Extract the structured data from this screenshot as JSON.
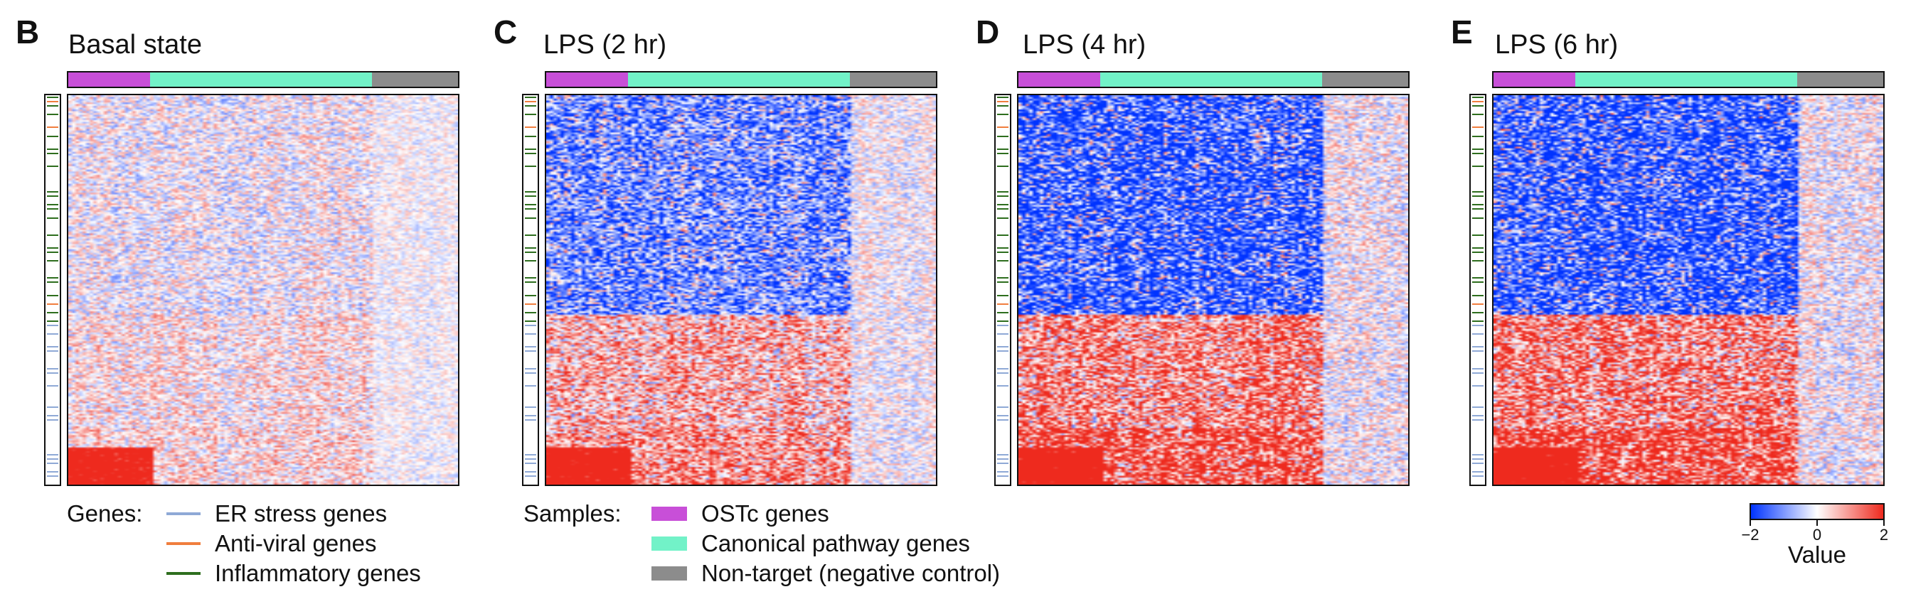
{
  "colors": {
    "ostc": "#c84fd8",
    "canonical": "#72f2c8",
    "nontarget": "#8c8c8c",
    "er_stress": "#8fa9d6",
    "anti_viral": "#f07e3e",
    "inflammatory": "#2e6e1e",
    "low": "#0033ff",
    "mid": "#ffffff",
    "high": "#ee2a1e"
  },
  "chart_data": {
    "type": "heatmap",
    "panels": [
      {
        "letter": "B",
        "title": "Basal state",
        "intensity": 0.35,
        "blue_block": 0.0,
        "red_block": 0.15
      },
      {
        "letter": "C",
        "title": "LPS (2 hr)",
        "intensity": 0.5,
        "blue_block": 0.55,
        "red_block": 0.45
      },
      {
        "letter": "D",
        "title": "LPS (4 hr)",
        "intensity": 0.6,
        "blue_block": 0.85,
        "red_block": 0.75
      },
      {
        "letter": "E",
        "title": "LPS (6 hr)",
        "intensity": 0.6,
        "blue_block": 0.85,
        "red_block": 0.8
      }
    ],
    "sample_groups": [
      {
        "name": "OSTc genes",
        "fraction": 0.21,
        "color_key": "ostc"
      },
      {
        "name": "Canonical pathway genes",
        "fraction": 0.57,
        "color_key": "canonical"
      },
      {
        "name": "Non-target (negative control)",
        "fraction": 0.22,
        "color_key": "nontarget"
      }
    ],
    "gene_groups": [
      {
        "name": "ER stress genes",
        "color_key": "er_stress"
      },
      {
        "name": "Anti-viral genes",
        "color_key": "anti_viral"
      },
      {
        "name": "Inflammatory genes",
        "color_key": "inflammatory"
      }
    ],
    "colorbar": {
      "min": -2,
      "mid": 0,
      "max": 2,
      "ticks": [
        "−2",
        "0",
        "2"
      ],
      "label": "Value"
    }
  },
  "legends": {
    "genes_title": "Genes:",
    "samples_title": "Samples:"
  }
}
